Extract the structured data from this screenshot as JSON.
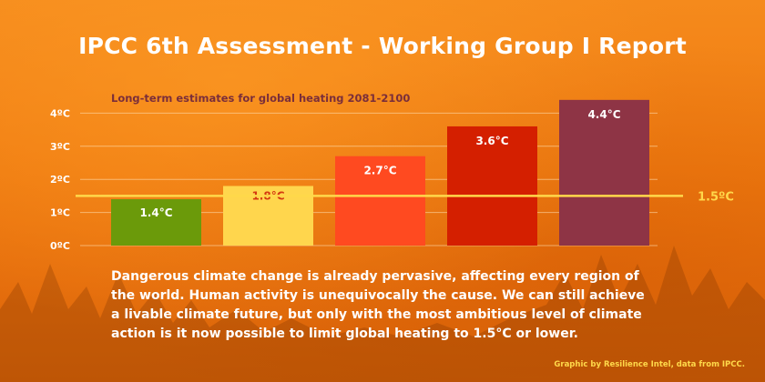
{
  "title": "IPCC 6th Assessment - Working Group I Report",
  "paragraph": "Dangerous climate change is already pervasive, affecting every region of the world. Human activity is unequivocally the cause. We can still achieve a livable climate future, but only with the most ambitious level of climate action is it now possible to limit global heating to 1.5°C or lower.",
  "credit": "Graphic by Resilience Intel, data from IPCC.",
  "chart_data": {
    "type": "bar",
    "title": "Long-term estimates for global heating 2081-2100",
    "xlabel": "",
    "ylabel": "",
    "ylim": [
      0,
      4.4
    ],
    "y_ticks": [
      "0ºC",
      "1ºC",
      "2ºC",
      "3ºC",
      "4ºC"
    ],
    "values": [
      1.4,
      1.8,
      2.7,
      3.6,
      4.4
    ],
    "value_labels": [
      "1.4°C",
      "1.8°C",
      "2.7°C",
      "3.6°C",
      "4.4°C"
    ],
    "bar_colors": [
      "#6b9a0a",
      "#ffd64d",
      "#ff4a20",
      "#d41f00",
      "#8e3445"
    ],
    "label_colors": [
      "#ffffff",
      "#d43a10",
      "#ffffff",
      "#ffffff",
      "#ffffff"
    ],
    "reference_line": {
      "value": 1.5,
      "label": "1.5ºC",
      "color": "#ffd84a"
    },
    "grid": true
  }
}
